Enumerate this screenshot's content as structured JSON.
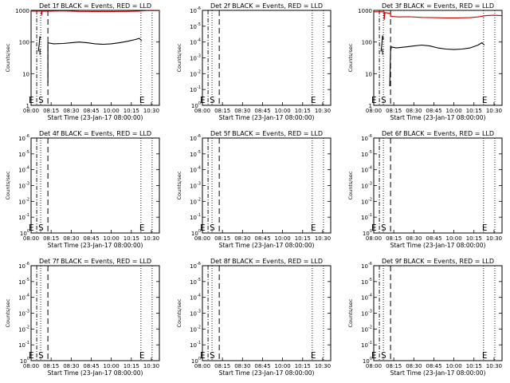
{
  "chart_data": [
    {
      "type": "line",
      "title": "Det 1f BLACK = Events, RED = LLD",
      "ylabel": "Counts/sec",
      "xlabel": "Start Time (23-Jan-17 08:00:00)",
      "yscale": "log",
      "ylim": [
        1,
        1000
      ],
      "ytick_labels": [
        {
          "base": "1000",
          "exp": ""
        },
        {
          "base": "100",
          "exp": ""
        },
        {
          "base": "10",
          "exp": ""
        },
        {
          "base": "1",
          "exp": ""
        }
      ],
      "xlim": [
        "08:00",
        "10:40"
      ],
      "xtick_labels": [
        "08:00",
        "08:15",
        "08:30",
        "08:45",
        "10:00",
        "10:15",
        "10:30"
      ],
      "markers": [
        {
          "label": "E",
          "x": "08:01"
        },
        {
          "label": "S",
          "x": "08:13"
        },
        {
          "label": "E",
          "x": "10:19"
        }
      ],
      "dotted_lines": [
        "08:12",
        "10:17",
        "10:31"
      ],
      "dash_dot_lines": [
        "08:13"
      ],
      "dashed_lines": [
        "08:21"
      ],
      "series": [
        {
          "color": "#000000",
          "points": [
            [
              "08:09",
              50
            ],
            [
              "08:10",
              80
            ],
            [
              "08:11",
              150
            ],
            [
              "08:12",
              130
            ]
          ]
        },
        {
          "color": "#000000",
          "points": [
            [
              "08:11",
              40
            ],
            [
              "08:11",
              60
            ]
          ]
        },
        {
          "color": "#000000",
          "points": [
            [
              "08:21",
              5
            ],
            [
              "08:21",
              95
            ],
            [
              "08:28",
              88
            ],
            [
              "08:40",
              90
            ],
            [
              "08:50",
              95
            ],
            [
              "09:00",
              100
            ],
            [
              "09:10",
              95
            ],
            [
              "09:20",
              88
            ],
            [
              "09:30",
              85
            ],
            [
              "09:40",
              88
            ],
            [
              "09:50",
              95
            ],
            [
              "10:00",
              105
            ],
            [
              "10:10",
              120
            ],
            [
              "10:15",
              130
            ],
            [
              "10:18",
              110
            ]
          ]
        },
        {
          "color": "#cc0000",
          "points": [
            [
              "08:00",
              950
            ],
            [
              "08:13",
              950
            ],
            [
              "08:13",
              700
            ],
            [
              "08:14",
              950
            ],
            [
              "08:21",
              940
            ],
            [
              "08:40",
              960
            ],
            [
              "09:00",
              930
            ],
            [
              "09:20",
              920
            ],
            [
              "09:40",
              920
            ],
            [
              "10:00",
              930
            ],
            [
              "10:15",
              950
            ],
            [
              "10:25",
              990
            ],
            [
              "10:40",
              980
            ]
          ]
        }
      ]
    },
    {
      "type": "line",
      "title": "Det 2f BLACK = Events, RED = LLD",
      "ylabel": "Counts/sec",
      "xlabel": "Start Time (23-Jan-17 08:00:00)",
      "yscale": "log",
      "ylim": [
        1,
        1e-06
      ],
      "ytick_labels": [
        {
          "base": "10",
          "exp": "-6"
        },
        {
          "base": "10",
          "exp": "-5"
        },
        {
          "base": "10",
          "exp": "-4"
        },
        {
          "base": "10",
          "exp": "-3"
        },
        {
          "base": "10",
          "exp": "-2"
        },
        {
          "base": "10",
          "exp": "-1"
        },
        {
          "base": "10",
          "exp": "0"
        }
      ],
      "xlim": [
        "08:00",
        "10:40"
      ],
      "xtick_labels": [
        "08:00",
        "08:15",
        "08:30",
        "08:45",
        "10:00",
        "10:15",
        "10:30"
      ],
      "markers": [
        {
          "label": "E",
          "x": "08:01"
        },
        {
          "label": "S",
          "x": "08:13"
        },
        {
          "label": "E",
          "x": "10:19"
        }
      ],
      "dotted_lines": [
        "08:12",
        "10:17",
        "10:31"
      ],
      "dash_dot_lines": [
        "08:13"
      ],
      "dashed_lines": [
        "08:21"
      ],
      "series": []
    },
    {
      "type": "line",
      "title": "Det 3f BLACK = Events, RED = LLD",
      "ylabel": "Counts/sec",
      "xlabel": "Start Time (23-Jan-17 08:00:00)",
      "yscale": "log",
      "ylim": [
        1,
        1000
      ],
      "ytick_labels": [
        {
          "base": "1000",
          "exp": ""
        },
        {
          "base": "100",
          "exp": ""
        },
        {
          "base": "10",
          "exp": ""
        },
        {
          "base": "1",
          "exp": ""
        }
      ],
      "xlim": [
        "08:00",
        "10:40"
      ],
      "xtick_labels": [
        "08:00",
        "08:15",
        "08:30",
        "08:45",
        "10:00",
        "10:15",
        "10:30"
      ],
      "markers": [
        {
          "label": "E",
          "x": "08:01"
        },
        {
          "label": "S",
          "x": "08:13"
        },
        {
          "label": "E",
          "x": "10:19"
        }
      ],
      "dotted_lines": [
        "08:12",
        "10:17",
        "10:31"
      ],
      "dash_dot_lines": [
        "08:13"
      ],
      "dashed_lines": [
        "08:21"
      ],
      "series": [
        {
          "color": "#000000",
          "points": [
            [
              "08:09",
              50
            ],
            [
              "08:10",
              80
            ],
            [
              "08:11",
              160
            ],
            [
              "08:12",
              120
            ]
          ]
        },
        {
          "color": "#000000",
          "points": [
            [
              "08:11",
              40
            ],
            [
              "08:11",
              60
            ]
          ]
        },
        {
          "color": "#000000",
          "points": [
            [
              "08:20",
              4
            ],
            [
              "08:21",
              50
            ],
            [
              "08:22",
              70
            ],
            [
              "08:28",
              65
            ],
            [
              "08:40",
              70
            ],
            [
              "08:50",
              75
            ],
            [
              "09:00",
              80
            ],
            [
              "09:10",
              75
            ],
            [
              "09:20",
              65
            ],
            [
              "09:30",
              60
            ],
            [
              "09:40",
              58
            ],
            [
              "09:50",
              60
            ],
            [
              "10:00",
              65
            ],
            [
              "10:10",
              80
            ],
            [
              "10:15",
              95
            ],
            [
              "10:18",
              80
            ]
          ]
        },
        {
          "color": "#cc0000",
          "points": [
            [
              "08:00",
              900
            ],
            [
              "08:13",
              900
            ],
            [
              "08:13",
              500
            ],
            [
              "08:14",
              850
            ],
            [
              "08:21",
              800
            ],
            [
              "08:21",
              650
            ],
            [
              "08:30",
              620
            ],
            [
              "08:45",
              630
            ],
            [
              "09:00",
              600
            ],
            [
              "09:15",
              590
            ],
            [
              "09:30",
              580
            ],
            [
              "09:45",
              580
            ],
            [
              "10:00",
              590
            ],
            [
              "10:10",
              620
            ],
            [
              "10:20",
              680
            ],
            [
              "10:30",
              700
            ],
            [
              "10:40",
              680
            ]
          ]
        }
      ]
    },
    {
      "type": "line",
      "title": "Det 4f BLACK = Events, RED = LLD",
      "ylabel": "Counts/sec",
      "xlabel": "Start Time (23-Jan-17 08:00:00)",
      "yscale": "log",
      "ylim": [
        1,
        1e-06
      ],
      "ytick_labels": [
        {
          "base": "10",
          "exp": "-6"
        },
        {
          "base": "10",
          "exp": "-5"
        },
        {
          "base": "10",
          "exp": "-4"
        },
        {
          "base": "10",
          "exp": "-3"
        },
        {
          "base": "10",
          "exp": "-2"
        },
        {
          "base": "10",
          "exp": "-1"
        },
        {
          "base": "10",
          "exp": "0"
        }
      ],
      "xlim": [
        "08:00",
        "10:40"
      ],
      "xtick_labels": [
        "08:00",
        "08:15",
        "08:30",
        "08:45",
        "10:00",
        "10:15",
        "10:30"
      ],
      "markers": [
        {
          "label": "E",
          "x": "08:01"
        },
        {
          "label": "S",
          "x": "08:13"
        },
        {
          "label": "E",
          "x": "10:19"
        }
      ],
      "dotted_lines": [
        "08:12",
        "10:17",
        "10:31"
      ],
      "dash_dot_lines": [
        "08:13"
      ],
      "dashed_lines": [
        "08:21"
      ],
      "series": []
    },
    {
      "type": "line",
      "title": "Det 5f BLACK = Events, RED = LLD",
      "ylabel": "Counts/sec",
      "xlabel": "Start Time (23-Jan-17 08:00:00)",
      "yscale": "log",
      "ylim": [
        1,
        1e-06
      ],
      "ytick_labels": [
        {
          "base": "10",
          "exp": "-6"
        },
        {
          "base": "10",
          "exp": "-5"
        },
        {
          "base": "10",
          "exp": "-4"
        },
        {
          "base": "10",
          "exp": "-3"
        },
        {
          "base": "10",
          "exp": "-2"
        },
        {
          "base": "10",
          "exp": "-1"
        },
        {
          "base": "10",
          "exp": "0"
        }
      ],
      "xlim": [
        "08:00",
        "10:40"
      ],
      "xtick_labels": [
        "08:00",
        "08:15",
        "08:30",
        "08:45",
        "10:00",
        "10:15",
        "10:30"
      ],
      "markers": [
        {
          "label": "E",
          "x": "08:01"
        },
        {
          "label": "S",
          "x": "08:13"
        },
        {
          "label": "E",
          "x": "10:19"
        }
      ],
      "dotted_lines": [
        "08:12",
        "10:17",
        "10:31"
      ],
      "dash_dot_lines": [
        "08:13"
      ],
      "dashed_lines": [
        "08:21"
      ],
      "series": []
    },
    {
      "type": "line",
      "title": "Det 6f BLACK = Events, RED = LLD",
      "ylabel": "Counts/sec",
      "xlabel": "Start Time (23-Jan-17 08:00:00)",
      "yscale": "log",
      "ylim": [
        1,
        1e-06
      ],
      "ytick_labels": [
        {
          "base": "10",
          "exp": "-6"
        },
        {
          "base": "10",
          "exp": "-5"
        },
        {
          "base": "10",
          "exp": "-4"
        },
        {
          "base": "10",
          "exp": "-3"
        },
        {
          "base": "10",
          "exp": "-2"
        },
        {
          "base": "10",
          "exp": "-1"
        },
        {
          "base": "10",
          "exp": "0"
        }
      ],
      "xlim": [
        "08:00",
        "10:40"
      ],
      "xtick_labels": [
        "08:00",
        "08:15",
        "08:30",
        "08:45",
        "10:00",
        "10:15",
        "10:30"
      ],
      "markers": [
        {
          "label": "E",
          "x": "08:01"
        },
        {
          "label": "S",
          "x": "08:13"
        },
        {
          "label": "E",
          "x": "10:19"
        }
      ],
      "dotted_lines": [
        "08:12",
        "10:17",
        "10:31"
      ],
      "dash_dot_lines": [
        "08:13"
      ],
      "dashed_lines": [
        "08:21"
      ],
      "series": []
    },
    {
      "type": "line",
      "title": "Det 7f BLACK = Events, RED = LLD",
      "ylabel": "Counts/sec",
      "xlabel": "Start Time (23-Jan-17 08:00:00)",
      "yscale": "log",
      "ylim": [
        1,
        1e-06
      ],
      "ytick_labels": [
        {
          "base": "10",
          "exp": "-6"
        },
        {
          "base": "10",
          "exp": "-5"
        },
        {
          "base": "10",
          "exp": "-4"
        },
        {
          "base": "10",
          "exp": "-3"
        },
        {
          "base": "10",
          "exp": "-2"
        },
        {
          "base": "10",
          "exp": "-1"
        },
        {
          "base": "10",
          "exp": "0"
        }
      ],
      "xlim": [
        "08:00",
        "10:40"
      ],
      "xtick_labels": [
        "08:00",
        "08:15",
        "08:30",
        "08:45",
        "10:00",
        "10:15",
        "10:30"
      ],
      "markers": [
        {
          "label": "E",
          "x": "08:01"
        },
        {
          "label": "S",
          "x": "08:13"
        },
        {
          "label": "E",
          "x": "10:19"
        }
      ],
      "dotted_lines": [
        "08:12",
        "10:17",
        "10:31"
      ],
      "dash_dot_lines": [
        "08:13"
      ],
      "dashed_lines": [
        "08:21"
      ],
      "series": []
    },
    {
      "type": "line",
      "title": "Det 8f BLACK = Events, RED = LLD",
      "ylabel": "Counts/sec",
      "xlabel": "Start Time (23-Jan-17 08:00:00)",
      "yscale": "log",
      "ylim": [
        1,
        1e-06
      ],
      "ytick_labels": [
        {
          "base": "10",
          "exp": "-6"
        },
        {
          "base": "10",
          "exp": "-5"
        },
        {
          "base": "10",
          "exp": "-4"
        },
        {
          "base": "10",
          "exp": "-3"
        },
        {
          "base": "10",
          "exp": "-2"
        },
        {
          "base": "10",
          "exp": "-1"
        },
        {
          "base": "10",
          "exp": "0"
        }
      ],
      "xlim": [
        "08:00",
        "10:40"
      ],
      "xtick_labels": [
        "08:00",
        "08:15",
        "08:30",
        "08:45",
        "10:00",
        "10:15",
        "10:30"
      ],
      "markers": [
        {
          "label": "E",
          "x": "08:01"
        },
        {
          "label": "S",
          "x": "08:13"
        },
        {
          "label": "E",
          "x": "10:19"
        }
      ],
      "dotted_lines": [
        "08:12",
        "10:17",
        "10:31"
      ],
      "dash_dot_lines": [
        "08:13"
      ],
      "dashed_lines": [
        "08:21"
      ],
      "series": []
    },
    {
      "type": "line",
      "title": "Det 9f BLACK = Events, RED = LLD",
      "ylabel": "Counts/sec",
      "xlabel": "Start Time (23-Jan-17 08:00:00)",
      "yscale": "log",
      "ylim": [
        1,
        1e-06
      ],
      "ytick_labels": [
        {
          "base": "10",
          "exp": "-6"
        },
        {
          "base": "10",
          "exp": "-5"
        },
        {
          "base": "10",
          "exp": "-4"
        },
        {
          "base": "10",
          "exp": "-3"
        },
        {
          "base": "10",
          "exp": "-2"
        },
        {
          "base": "10",
          "exp": "-1"
        },
        {
          "base": "10",
          "exp": "0"
        }
      ],
      "xlim": [
        "08:00",
        "10:40"
      ],
      "xtick_labels": [
        "08:00",
        "08:15",
        "08:30",
        "08:45",
        "10:00",
        "10:15",
        "10:30"
      ],
      "markers": [
        {
          "label": "E",
          "x": "08:01"
        },
        {
          "label": "S",
          "x": "08:13"
        },
        {
          "label": "E",
          "x": "10:19"
        }
      ],
      "dotted_lines": [
        "08:12",
        "10:17",
        "10:31"
      ],
      "dash_dot_lines": [
        "08:13"
      ],
      "dashed_lines": [
        "08:21"
      ],
      "series": []
    }
  ]
}
